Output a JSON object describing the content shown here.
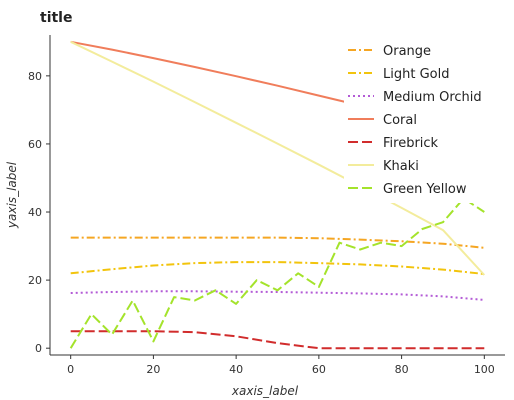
{
  "chart_data": {
    "type": "line",
    "title": "title",
    "xlabel": "xaxis_label",
    "ylabel": "yaxis_label",
    "xlim": [
      -5,
      105
    ],
    "ylim": [
      -2,
      92
    ],
    "x_ticks": [
      0,
      20,
      40,
      60,
      80,
      100
    ],
    "y_ticks": [
      0,
      20,
      40,
      60,
      80
    ],
    "x_tick_labels": [
      "0",
      "20",
      "40",
      "60",
      "80",
      "100"
    ],
    "y_tick_labels": [
      "0",
      "20",
      "40",
      "60",
      "80"
    ],
    "grid": false,
    "legend_position": "top-right",
    "series": [
      {
        "name": "Orange",
        "color": "#F5A623",
        "dash": "8,3,2,3",
        "x": [
          0,
          10,
          20,
          30,
          40,
          50,
          60,
          70,
          80,
          90,
          100
        ],
        "y": [
          32.5,
          32.5,
          32.5,
          32.5,
          32.5,
          32.5,
          32.3,
          31.9,
          31.4,
          30.7,
          29.5
        ]
      },
      {
        "name": "Light Gold",
        "color": "#F2C40D",
        "dash": "8,3,2,3",
        "x": [
          0,
          10,
          20,
          30,
          40,
          50,
          60,
          70,
          80,
          90,
          100
        ],
        "y": [
          22,
          23.2,
          24.3,
          25,
          25.3,
          25.3,
          25,
          24.6,
          24,
          23.1,
          21.8
        ]
      },
      {
        "name": "Medium Orchid",
        "color": "#B35BD6",
        "dash": "2,3",
        "x": [
          0,
          10,
          20,
          30,
          40,
          50,
          60,
          70,
          80,
          90,
          100
        ],
        "y": [
          16.2,
          16.5,
          16.7,
          16.7,
          16.6,
          16.5,
          16.3,
          16.1,
          15.8,
          15.2,
          14.2
        ]
      },
      {
        "name": "Coral",
        "color": "#F07D5B",
        "dash": "",
        "x": [
          0,
          10,
          20,
          30,
          40,
          50,
          60,
          70,
          80,
          90,
          100
        ],
        "y": [
          90,
          87.7,
          85.2,
          82.6,
          79.9,
          77.1,
          74.2,
          71.3,
          68.3,
          65.2,
          62
        ]
      },
      {
        "name": "Firebrick",
        "color": "#D12C2C",
        "dash": "10,4",
        "x": [
          0,
          10,
          20,
          30,
          40,
          50,
          60,
          70,
          80,
          90,
          100
        ],
        "y": [
          5,
          5,
          5,
          4.7,
          3.5,
          1.5,
          0,
          0,
          0,
          0,
          0
        ]
      },
      {
        "name": "Khaki",
        "color": "#F3EC9C",
        "dash": "",
        "x": [
          0,
          10,
          20,
          30,
          40,
          50,
          60,
          70,
          80,
          90,
          100
        ],
        "y": [
          90,
          84.2,
          78.3,
          72.3,
          66.2,
          60.1,
          53.9,
          47.6,
          41.2,
          34.7,
          21.5
        ]
      },
      {
        "name": "Green Yellow",
        "color": "#A4E32B",
        "dash": "10,4",
        "x": [
          0,
          5,
          10,
          15,
          20,
          25,
          30,
          35,
          40,
          45,
          50,
          55,
          60,
          65,
          70,
          75,
          80,
          85,
          90,
          95,
          100
        ],
        "y": [
          0,
          10,
          4,
          14,
          2,
          15,
          14,
          17,
          13,
          20,
          17,
          22,
          18,
          31,
          29,
          31,
          30,
          35,
          37,
          44,
          40
        ]
      }
    ]
  }
}
